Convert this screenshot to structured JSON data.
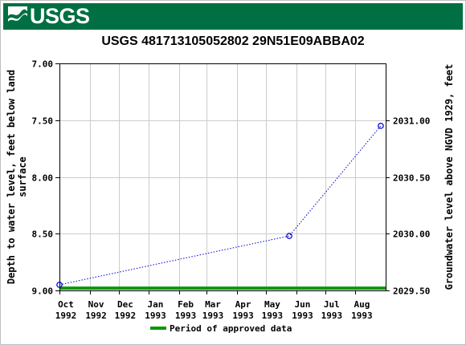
{
  "header": {
    "logo_text": "USGS",
    "brand_color": "#006f41"
  },
  "chart_data": {
    "type": "line",
    "title": "USGS 481713105052802 29N51E09ABBA02",
    "ylabel_left": "Depth to water level, feet below land surface",
    "ylabel_left_lines": [
      "Depth to water level, feet below land",
      "surface"
    ],
    "ylabel_right": "Groundwater level above NGVD 1929, feet",
    "y_left": {
      "lim": [
        7.0,
        9.0
      ],
      "inverted": true,
      "ticks": [
        7.0,
        7.5,
        8.0,
        8.5,
        9.0
      ],
      "tick_labels": [
        "7.00",
        "7.50",
        "8.00",
        "8.50",
        "9.00"
      ]
    },
    "y_right": {
      "lim": [
        2031.5,
        2029.5
      ],
      "ticks": [
        2031.0,
        2030.5,
        2030.0,
        2029.5
      ],
      "tick_labels": [
        "2031.00",
        "2030.50",
        "2030.00",
        "2029.50"
      ]
    },
    "x": {
      "start": "1992-10-01",
      "end": "1993-09-01",
      "months": [
        {
          "label": "Oct",
          "year": "1992",
          "date": "1992-10-01"
        },
        {
          "label": "Nov",
          "year": "1992",
          "date": "1992-11-01"
        },
        {
          "label": "Dec",
          "year": "1992",
          "date": "1992-12-01"
        },
        {
          "label": "Jan",
          "year": "1993",
          "date": "1993-01-01"
        },
        {
          "label": "Feb",
          "year": "1993",
          "date": "1993-02-01"
        },
        {
          "label": "Mar",
          "year": "1993",
          "date": "1993-03-01"
        },
        {
          "label": "Apr",
          "year": "1993",
          "date": "1993-04-01"
        },
        {
          "label": "May",
          "year": "1993",
          "date": "1993-05-01"
        },
        {
          "label": "Jun",
          "year": "1993",
          "date": "1993-06-01"
        },
        {
          "label": "Jul",
          "year": "1993",
          "date": "1993-07-01"
        },
        {
          "label": "Aug",
          "year": "1993",
          "date": "1993-08-01"
        }
      ]
    },
    "grid": true,
    "series": [
      {
        "color": "#0000cc",
        "style": "dotted",
        "marker": "circle",
        "points": [
          {
            "date": "1992-10-01",
            "value": 8.95
          },
          {
            "date": "1993-05-25",
            "value": 8.52
          },
          {
            "date": "1993-08-27",
            "value": 7.55
          }
        ]
      }
    ],
    "approved_period": {
      "start": "1992-10-01",
      "end": "1993-09-01",
      "value": 8.98,
      "color": "#009900"
    },
    "legend": {
      "label": "Period of approved data",
      "placement": "bottom"
    }
  }
}
